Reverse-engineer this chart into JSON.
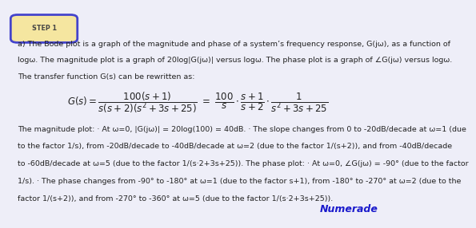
{
  "background_color": "#eeeef8",
  "step_label": "STEP 1",
  "step_bg": "#f5e6a0",
  "step_border": "#4444cc",
  "numerade_color": "#1a1acc",
  "text_color": "#222222",
  "font_size_body": 6.8,
  "font_size_step": 5.8,
  "font_size_eq": 8.5,
  "font_size_numerade": 9.0,
  "intro_lines": [
    "a) The Bode plot is a graph of the magnitude and phase of a system’s frequency response, G(jω), as a function of",
    "logω. The magnitude plot is a graph of 20log|G(jω)| versus logω. The phase plot is a graph of ∠G(jω) versus logω.",
    "The transfer function G(s) can be rewritten as:"
  ],
  "body_lines": [
    "The magnitude plot: · At ω=0, |G(jω)| = 20log(100) = 40dB. · The slope changes from 0 to -20dB/decade at ω=1 (due",
    "to the factor 1/s), from -20dB/decade to -40dB/decade at ω=2 (due to the factor 1/(s+2)), and from -40dB/decade",
    "to -60dB/decade at ω=5 (due to the factor 1/(s·2+3s+25)). The phase plot: · At ω=0, ∠G(jω) = -90° (due to the factor",
    "1/s). · The phase changes from -90° to -180° at ω=1 (due to the factor s+1), from -180° to -270° at ω=2 (due to the",
    "factor 1/(s+2)), and from -270° to -360° at ω=5 (due to the factor 1/(s·2+3s+25))."
  ]
}
